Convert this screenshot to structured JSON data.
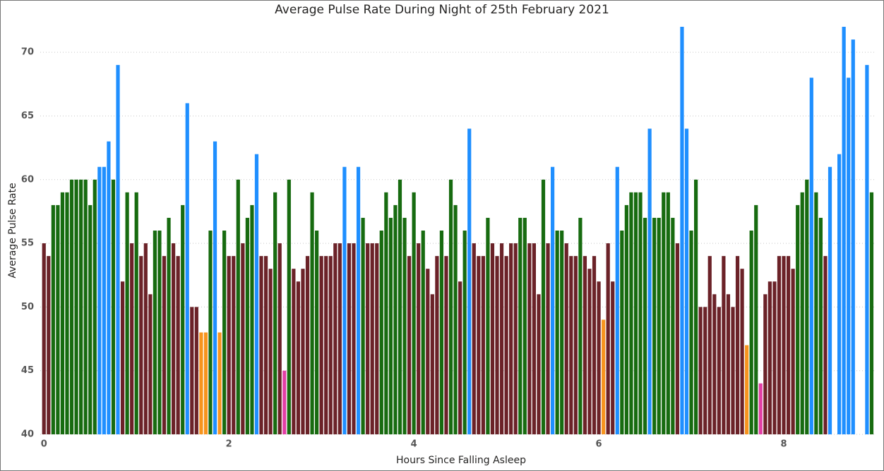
{
  "chart_data": {
    "type": "bar",
    "title": "Average Pulse Rate During Night of 25th February 2021",
    "x_label": "Hours Since Falling Asleep",
    "y_label": "Average Pulse Rate",
    "x": [
      0,
      0.05,
      0.1,
      0.15,
      0.2,
      0.25,
      0.3,
      0.35,
      0.4,
      0.45,
      0.5,
      0.55,
      0.6,
      0.65,
      0.7,
      0.75,
      0.8,
      0.85,
      0.9,
      0.95,
      1,
      1.05,
      1.1,
      1.15,
      1.2,
      1.25,
      1.3,
      1.35,
      1.4,
      1.45,
      1.5,
      1.55,
      1.6,
      1.65,
      1.7,
      1.75,
      1.8,
      1.85,
      1.9,
      1.95,
      2,
      2.05,
      2.1,
      2.15,
      2.2,
      2.25,
      2.3,
      2.35,
      2.4,
      2.45,
      2.5,
      2.55,
      2.6,
      2.65,
      2.7,
      2.75,
      2.8,
      2.85,
      2.9,
      2.95,
      3,
      3.05,
      3.1,
      3.15,
      3.2,
      3.25,
      3.3,
      3.35,
      3.4,
      3.45,
      3.5,
      3.55,
      3.6,
      3.65,
      3.7,
      3.75,
      3.8,
      3.85,
      3.9,
      3.95,
      4,
      4.05,
      4.1,
      4.15,
      4.2,
      4.25,
      4.3,
      4.35,
      4.4,
      4.45,
      4.5,
      4.55,
      4.6,
      4.65,
      4.7,
      4.75,
      4.8,
      4.85,
      4.9,
      4.95,
      5,
      5.05,
      5.1,
      5.15,
      5.2,
      5.25,
      5.3,
      5.35,
      5.4,
      5.45,
      5.5,
      5.55,
      5.6,
      5.65,
      5.7,
      5.75,
      5.8,
      5.85,
      5.9,
      5.95,
      6,
      6.05,
      6.1,
      6.15,
      6.2,
      6.25,
      6.3,
      6.35,
      6.4,
      6.45,
      6.5,
      6.55,
      6.6,
      6.65,
      6.7,
      6.75,
      6.8,
      6.85,
      6.9,
      6.95,
      7,
      7.05,
      7.1,
      7.15,
      7.2,
      7.25,
      7.3,
      7.35,
      7.4,
      7.45,
      7.5,
      7.55,
      7.6,
      7.65,
      7.7,
      7.75,
      7.8,
      7.85,
      7.9,
      7.95,
      8,
      8.05,
      8.1,
      8.15,
      8.2,
      8.25,
      8.3,
      8.35,
      8.4,
      8.45,
      8.5,
      8.55,
      8.6,
      8.65,
      8.7,
      8.75,
      8.8,
      8.85,
      8.9,
      8.95
    ],
    "values": [
      55,
      54,
      58,
      58,
      59,
      59,
      60,
      60,
      60,
      60,
      58,
      60,
      61,
      61,
      63,
      60,
      69,
      52,
      59,
      55,
      59,
      54,
      55,
      51,
      56,
      56,
      54,
      57,
      55,
      54,
      58,
      66,
      50,
      50,
      48,
      48,
      56,
      63,
      48,
      56,
      54,
      54,
      60,
      55,
      57,
      58,
      62,
      54,
      54,
      53,
      59,
      55,
      45,
      60,
      53,
      52,
      53,
      54,
      59,
      56,
      54,
      54,
      54,
      55,
      55,
      61,
      55,
      55,
      61,
      57,
      55,
      55,
      55,
      56,
      59,
      57,
      58,
      60,
      57,
      54,
      59,
      55,
      56,
      53,
      51,
      54,
      56,
      54,
      60,
      58,
      52,
      56,
      64,
      55,
      54,
      54,
      57,
      55,
      54,
      55,
      54,
      55,
      55,
      57,
      57,
      55,
      55,
      51,
      60,
      55,
      61,
      56,
      56,
      55,
      54,
      54,
      57,
      54,
      53,
      54,
      52,
      49,
      55,
      52,
      61,
      56,
      58,
      59,
      59,
      59,
      57,
      64,
      57,
      57,
      59,
      59,
      57,
      55,
      72,
      64,
      56,
      60,
      50,
      50,
      54,
      51,
      50,
      54,
      51,
      50,
      54,
      53,
      47,
      56,
      58,
      44,
      51,
      52,
      52,
      54,
      54,
      54,
      53,
      58,
      59,
      60,
      68,
      59,
      57,
      54,
      61,
      null,
      62,
      72,
      68,
      71,
      null,
      null,
      69,
      59
    ],
    "colors": [
      "#6b2228",
      "#6b2228",
      "#176b10",
      "#176b10",
      "#176b10",
      "#176b10",
      "#176b10",
      "#176b10",
      "#176b10",
      "#176b10",
      "#176b10",
      "#176b10",
      "#1f8fff",
      "#1f8fff",
      "#1f8fff",
      "#176b10",
      "#1f8fff",
      "#6b2228",
      "#176b10",
      "#6b2228",
      "#176b10",
      "#6b2228",
      "#6b2228",
      "#6b2228",
      "#176b10",
      "#176b10",
      "#6b2228",
      "#176b10",
      "#6b2228",
      "#6b2228",
      "#176b10",
      "#1f8fff",
      "#6b2228",
      "#6b2228",
      "#f7941e",
      "#f7941e",
      "#176b10",
      "#1f8fff",
      "#f7941e",
      "#176b10",
      "#6b2228",
      "#6b2228",
      "#176b10",
      "#6b2228",
      "#176b10",
      "#176b10",
      "#1f8fff",
      "#6b2228",
      "#6b2228",
      "#6b2228",
      "#176b10",
      "#6b2228",
      "#e23fa5",
      "#176b10",
      "#6b2228",
      "#6b2228",
      "#6b2228",
      "#6b2228",
      "#176b10",
      "#176b10",
      "#6b2228",
      "#6b2228",
      "#6b2228",
      "#6b2228",
      "#6b2228",
      "#1f8fff",
      "#6b2228",
      "#6b2228",
      "#1f8fff",
      "#176b10",
      "#6b2228",
      "#6b2228",
      "#6b2228",
      "#176b10",
      "#176b10",
      "#176b10",
      "#176b10",
      "#176b10",
      "#176b10",
      "#6b2228",
      "#176b10",
      "#6b2228",
      "#176b10",
      "#6b2228",
      "#6b2228",
      "#6b2228",
      "#176b10",
      "#6b2228",
      "#176b10",
      "#176b10",
      "#6b2228",
      "#176b10",
      "#1f8fff",
      "#6b2228",
      "#6b2228",
      "#6b2228",
      "#176b10",
      "#6b2228",
      "#6b2228",
      "#6b2228",
      "#6b2228",
      "#6b2228",
      "#6b2228",
      "#176b10",
      "#176b10",
      "#6b2228",
      "#6b2228",
      "#6b2228",
      "#176b10",
      "#6b2228",
      "#1f8fff",
      "#176b10",
      "#176b10",
      "#6b2228",
      "#6b2228",
      "#6b2228",
      "#176b10",
      "#6b2228",
      "#6b2228",
      "#6b2228",
      "#6b2228",
      "#f7941e",
      "#6b2228",
      "#6b2228",
      "#1f8fff",
      "#176b10",
      "#176b10",
      "#176b10",
      "#176b10",
      "#176b10",
      "#176b10",
      "#1f8fff",
      "#176b10",
      "#176b10",
      "#176b10",
      "#176b10",
      "#176b10",
      "#6b2228",
      "#1f8fff",
      "#1f8fff",
      "#176b10",
      "#176b10",
      "#6b2228",
      "#6b2228",
      "#6b2228",
      "#6b2228",
      "#6b2228",
      "#6b2228",
      "#6b2228",
      "#6b2228",
      "#6b2228",
      "#6b2228",
      "#f7941e",
      "#176b10",
      "#176b10",
      "#e23fa5",
      "#6b2228",
      "#6b2228",
      "#6b2228",
      "#6b2228",
      "#6b2228",
      "#6b2228",
      "#6b2228",
      "#176b10",
      "#176b10",
      "#176b10",
      "#1f8fff",
      "#176b10",
      "#176b10",
      "#6b2228",
      "#1f8fff",
      null,
      "#1f8fff",
      "#1f8fff",
      "#1f8fff",
      "#1f8fff",
      null,
      null,
      "#1f8fff",
      "#176b10"
    ],
    "xlim": [
      -0.04,
      9.0
    ],
    "xticks": [
      0,
      2,
      4,
      6,
      8
    ],
    "ylim": [
      40,
      72
    ],
    "yticks": [
      40,
      45,
      50,
      55,
      60,
      65,
      70
    ],
    "grid": true
  }
}
